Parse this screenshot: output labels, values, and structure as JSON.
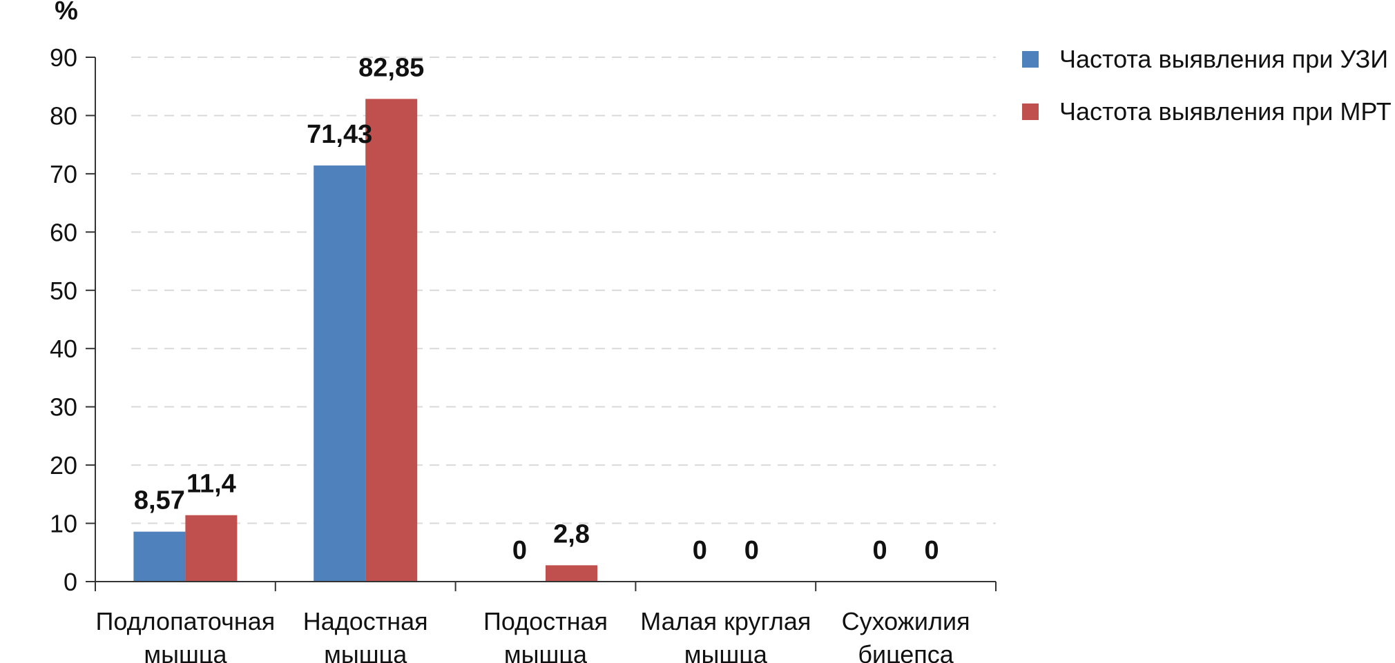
{
  "chart_data": {
    "type": "bar",
    "ylabel": "%",
    "ylim": [
      0,
      90
    ],
    "ytick_step": 10,
    "grid": true,
    "legend_position": "top-right",
    "categories": [
      [
        "Подлопаточная",
        "мышца"
      ],
      [
        "Надостная",
        "мышца"
      ],
      [
        "Подостная",
        "мышца"
      ],
      [
        "Малая круглая",
        "мышца"
      ],
      [
        "Сухожилия",
        "бицепса"
      ]
    ],
    "series": [
      {
        "name": "Частота выявления при УЗИ",
        "color": "#4F81BD",
        "values": [
          8.57,
          71.43,
          0,
          0,
          0
        ],
        "labels": [
          "8,57",
          "71,43",
          "0",
          "0",
          "0"
        ]
      },
      {
        "name": "Частота выявления при МРТ",
        "color": "#C0504D",
        "values": [
          11.4,
          82.85,
          2.8,
          0,
          0
        ],
        "labels": [
          "11,4",
          "82,85",
          "2,8",
          "0",
          "0"
        ]
      }
    ]
  }
}
